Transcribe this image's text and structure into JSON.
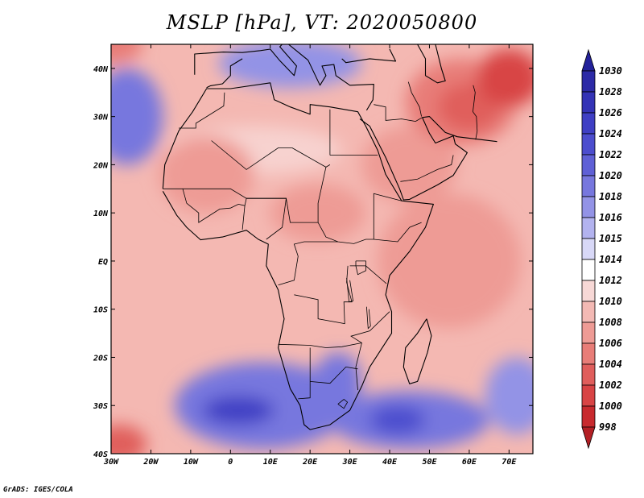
{
  "title": "MSLP [hPa], VT: 2020050800",
  "credit": "GrADS: IGES/COLA",
  "map": {
    "lon_range": [
      -30,
      76
    ],
    "lat_range": [
      -40,
      45
    ],
    "x_ticks": [
      {
        "lon": -30,
        "label": "30W"
      },
      {
        "lon": -20,
        "label": "20W"
      },
      {
        "lon": -10,
        "label": "10W"
      },
      {
        "lon": 0,
        "label": "0"
      },
      {
        "lon": 10,
        "label": "10E"
      },
      {
        "lon": 20,
        "label": "20E"
      },
      {
        "lon": 30,
        "label": "30E"
      },
      {
        "lon": 40,
        "label": "40E"
      },
      {
        "lon": 50,
        "label": "50E"
      },
      {
        "lon": 60,
        "label": "60E"
      },
      {
        "lon": 70,
        "label": "70E"
      }
    ],
    "y_ticks": [
      {
        "lat": 40,
        "label": "40N"
      },
      {
        "lat": 30,
        "label": "30N"
      },
      {
        "lat": 20,
        "label": "20N"
      },
      {
        "lat": 10,
        "label": "10N"
      },
      {
        "lat": 0,
        "label": "EQ"
      },
      {
        "lat": -10,
        "label": "10S"
      },
      {
        "lat": -20,
        "label": "20S"
      },
      {
        "lat": -30,
        "label": "30S"
      },
      {
        "lat": -40,
        "label": "40S"
      }
    ],
    "background_color": "#f4b8b2"
  },
  "colorbar": {
    "labels": [
      "1030",
      "1028",
      "1026",
      "1024",
      "1022",
      "1020",
      "1018",
      "1016",
      "1015",
      "1014",
      "1012",
      "1010",
      "1008",
      "1006",
      "1004",
      "1002",
      "1000",
      "998"
    ],
    "colors": [
      "#2c2aa6",
      "#3433b6",
      "#3f3fc4",
      "#4c4dce",
      "#5f60d6",
      "#7777de",
      "#9393e6",
      "#b3b3ef",
      "#d8d8f7",
      "#ffffff",
      "#f7d8d6",
      "#f3b9b4",
      "#ee9b95",
      "#e87d78",
      "#e05e5c",
      "#d84445",
      "#c82a2e"
    ],
    "top_arrow_color": "#23219a",
    "bottom_arrow_color": "#b31f24"
  },
  "features": [
    {
      "name": "sahara-ridge",
      "lon": 6,
      "lat": 23,
      "rx": 22,
      "ry": 5,
      "color": "#f7d2cf"
    },
    {
      "name": "west-sahara-low",
      "lon": -6,
      "lat": 18,
      "rx": 12,
      "ry": 8,
      "color": "#ee9b95"
    },
    {
      "name": "sudan-low",
      "lon": 22,
      "lat": 10,
      "rx": 12,
      "ry": 6,
      "color": "#ee9b95"
    },
    {
      "name": "arabia-low",
      "lon": 45,
      "lat": 20,
      "rx": 12,
      "ry": 8,
      "color": "#ee9b95"
    },
    {
      "name": "persia-low",
      "lon": 58,
      "lat": 33,
      "rx": 14,
      "ry": 9,
      "color": "#e87d78"
    },
    {
      "name": "persia-core",
      "lon": 60,
      "lat": 32,
      "rx": 8,
      "ry": 5,
      "color": "#e05e5c"
    },
    {
      "name": "asia-low",
      "lon": 70,
      "lat": 38,
      "rx": 8,
      "ry": 6,
      "color": "#d84445"
    },
    {
      "name": "med-ridge",
      "lon": 15,
      "lat": 41,
      "rx": 18,
      "ry": 5,
      "color": "#9393e6"
    },
    {
      "name": "azores-ridge",
      "lon": -26,
      "lat": 30,
      "rx": 9,
      "ry": 10,
      "color": "#7777de"
    },
    {
      "name": "nw-low",
      "lon": -30,
      "lat": 45,
      "rx": 8,
      "ry": 4,
      "color": "#e87d78"
    },
    {
      "name": "indian-ocean-warm",
      "lon": 55,
      "lat": 0,
      "rx": 18,
      "ry": 14,
      "color": "#ee9b95"
    },
    {
      "name": "south-atlantic-high",
      "lon": 8,
      "lat": -30,
      "rx": 22,
      "ry": 9,
      "color": "#7777de"
    },
    {
      "name": "south-atlantic-core",
      "lon": 2,
      "lat": -31,
      "rx": 9,
      "ry": 3,
      "color": "#3f3fc4"
    },
    {
      "name": "southern-africa-high",
      "lon": 27,
      "lat": -25,
      "rx": 6,
      "ry": 6,
      "color": "#7777de"
    },
    {
      "name": "mascarene-high",
      "lon": 45,
      "lat": -33,
      "rx": 20,
      "ry": 6,
      "color": "#7777de"
    },
    {
      "name": "mascarene-core",
      "lon": 42,
      "lat": -33,
      "rx": 7,
      "ry": 3,
      "color": "#4c4dce"
    },
    {
      "name": "east-high",
      "lon": 72,
      "lat": -28,
      "rx": 8,
      "ry": 8,
      "color": "#9393e6"
    },
    {
      "name": "sw-low",
      "lon": -28,
      "lat": -38,
      "rx": 7,
      "ry": 4,
      "color": "#e05e5c"
    }
  ],
  "coastlines": [
    {
      "name": "africa-coastline",
      "points": [
        [
          -17,
          15
        ],
        [
          -16.5,
          20
        ],
        [
          -13,
          27
        ],
        [
          -9.5,
          31
        ],
        [
          -6,
          35.8
        ],
        [
          0,
          35.8
        ],
        [
          10,
          37
        ],
        [
          11,
          33.5
        ],
        [
          15,
          32
        ],
        [
          20,
          30.5
        ],
        [
          20,
          32.5
        ],
        [
          25,
          32
        ],
        [
          32,
          31
        ],
        [
          34,
          28
        ],
        [
          37,
          23
        ],
        [
          39,
          18
        ],
        [
          43,
          12.5
        ],
        [
          51,
          11.8
        ],
        [
          49,
          7
        ],
        [
          45,
          2
        ],
        [
          40,
          -3
        ],
        [
          39,
          -7
        ],
        [
          40.5,
          -10.5
        ],
        [
          40.5,
          -15
        ],
        [
          35,
          -22
        ],
        [
          33,
          -26
        ],
        [
          30,
          -31
        ],
        [
          25,
          -34
        ],
        [
          20,
          -35
        ],
        [
          18.5,
          -34
        ],
        [
          17.5,
          -30
        ],
        [
          15,
          -26.5
        ],
        [
          12,
          -18
        ],
        [
          13.5,
          -12
        ],
        [
          12,
          -6
        ],
        [
          9,
          -1
        ],
        [
          9.5,
          3.5
        ],
        [
          7,
          4.5
        ],
        [
          4,
          6.4
        ],
        [
          -2,
          5
        ],
        [
          -7.5,
          4.4
        ],
        [
          -11,
          7
        ],
        [
          -13.5,
          9.5
        ],
        [
          -17,
          14.5
        ]
      ]
    },
    {
      "name": "madagascar-coastline",
      "points": [
        [
          49.3,
          -12
        ],
        [
          50.5,
          -15.5
        ],
        [
          49.5,
          -19
        ],
        [
          47,
          -25
        ],
        [
          45,
          -25.5
        ],
        [
          43.5,
          -22
        ],
        [
          44,
          -18
        ],
        [
          47,
          -15
        ],
        [
          49.3,
          -12
        ]
      ]
    },
    {
      "name": "arabia-coastline",
      "points": [
        [
          32.5,
          29.5
        ],
        [
          35,
          28
        ],
        [
          39,
          21.5
        ],
        [
          42.5,
          15
        ],
        [
          43.5,
          12.7
        ],
        [
          45,
          12.8
        ],
        [
          52,
          15.8
        ],
        [
          56,
          17.8
        ],
        [
          59.5,
          22.5
        ],
        [
          56.5,
          24.3
        ],
        [
          56,
          26
        ],
        [
          51.5,
          24.5
        ],
        [
          50,
          26.5
        ],
        [
          48.2,
          29.8
        ],
        [
          50,
          30
        ],
        [
          54,
          26.7
        ],
        [
          57,
          25.8
        ],
        [
          62,
          25.3
        ],
        [
          67,
          24.8
        ]
      ]
    },
    {
      "name": "europe-coastline",
      "points": [
        [
          -9,
          38.7
        ],
        [
          -9,
          43
        ],
        [
          -1.8,
          43.4
        ],
        [
          3,
          43.3
        ],
        [
          7.5,
          43.7
        ],
        [
          10,
          44
        ],
        [
          12.3,
          41.7
        ],
        [
          16,
          38.5
        ],
        [
          16.6,
          40.5
        ],
        [
          12.4,
          44.5
        ],
        [
          13.7,
          45.6
        ],
        [
          19.5,
          41.7
        ],
        [
          22.5,
          36.5
        ],
        [
          24,
          38.5
        ],
        [
          23,
          40.5
        ],
        [
          26,
          40.8
        ],
        [
          26.5,
          38.5
        ],
        [
          30,
          36.5
        ],
        [
          36,
          36.7
        ],
        [
          35.8,
          33.5
        ],
        [
          34.2,
          31.3
        ]
      ]
    },
    {
      "name": "caspian-coastline",
      "points": [
        [
          47,
          45
        ],
        [
          49,
          42
        ],
        [
          49,
          38.5
        ],
        [
          52,
          37
        ],
        [
          54,
          37.4
        ],
        [
          53,
          40
        ],
        [
          51.5,
          45
        ]
      ]
    },
    {
      "name": "black-sea-coastline",
      "points": [
        [
          28,
          42
        ],
        [
          29,
          41.2
        ],
        [
          35,
          42
        ],
        [
          41.5,
          41.5
        ],
        [
          40,
          44
        ]
      ]
    },
    {
      "name": "iberia-med-coastline",
      "points": [
        [
          -6,
          36
        ],
        [
          -5,
          36.4
        ],
        [
          -2,
          36.8
        ],
        [
          0,
          38.5
        ],
        [
          0,
          40.5
        ],
        [
          3,
          42
        ]
      ]
    }
  ],
  "borders": [
    {
      "name": "egypt-libya",
      "points": [
        [
          25,
          31.5
        ],
        [
          25,
          22
        ]
      ]
    },
    {
      "name": "egypt-sudan",
      "points": [
        [
          25,
          22
        ],
        [
          37,
          22
        ]
      ]
    },
    {
      "name": "libya-chad",
      "points": [
        [
          25,
          20
        ],
        [
          24,
          19.5
        ],
        [
          15.5,
          23.5
        ]
      ]
    },
    {
      "name": "algeria-niger-mali",
      "points": [
        [
          -4.8,
          25
        ],
        [
          4,
          19
        ],
        [
          12,
          23.5
        ],
        [
          15.5,
          23.5
        ]
      ]
    },
    {
      "name": "sahel",
      "points": [
        [
          -17,
          15
        ],
        [
          -12,
          15
        ],
        [
          -5,
          15
        ],
        [
          0,
          15
        ],
        [
          4,
          13
        ],
        [
          14,
          13
        ],
        [
          15,
          8
        ],
        [
          22,
          8
        ],
        [
          24,
          5
        ],
        [
          27,
          4
        ],
        [
          31,
          3.6
        ],
        [
          34,
          4.5
        ],
        [
          36,
          4.5
        ],
        [
          42,
          4
        ],
        [
          45,
          7
        ],
        [
          48,
          8
        ]
      ]
    },
    {
      "name": "chad-sudan",
      "points": [
        [
          24,
          19.5
        ],
        [
          22,
          12
        ],
        [
          22,
          8
        ]
      ]
    },
    {
      "name": "nigeria",
      "points": [
        [
          3,
          6.5
        ],
        [
          3.6,
          11.5
        ],
        [
          4,
          13
        ],
        [
          14,
          13
        ],
        [
          13,
          7
        ],
        [
          9,
          4.5
        ]
      ]
    },
    {
      "name": "drc-west",
      "points": [
        [
          12,
          -5
        ],
        [
          16,
          -4
        ],
        [
          17,
          1
        ],
        [
          16,
          3.5
        ],
        [
          18.5,
          4
        ],
        [
          27,
          4
        ]
      ]
    },
    {
      "name": "drc-east",
      "points": [
        [
          29.5,
          -1
        ],
        [
          29.2,
          -4.4
        ],
        [
          30.5,
          -8.5
        ],
        [
          28.5,
          -8.5
        ],
        [
          28.7,
          -13
        ],
        [
          22,
          -12
        ],
        [
          22,
          -8
        ],
        [
          16,
          -7
        ]
      ]
    },
    {
      "name": "angola-namibia",
      "points": [
        [
          12,
          -17.3
        ],
        [
          20,
          -17.5
        ],
        [
          24,
          -18
        ],
        [
          28,
          -17.8
        ],
        [
          33,
          -17
        ]
      ]
    },
    {
      "name": "namibia-botswana",
      "points": [
        [
          20,
          -18
        ],
        [
          20,
          -22
        ],
        [
          20,
          -28.4
        ],
        [
          17,
          -28.6
        ]
      ]
    },
    {
      "name": "botswana-sa",
      "points": [
        [
          20,
          -25
        ],
        [
          25,
          -25.4
        ],
        [
          29,
          -22
        ],
        [
          32,
          -22.4
        ]
      ]
    },
    {
      "name": "mozambique",
      "points": [
        [
          32,
          -26.8
        ],
        [
          31.5,
          -22
        ],
        [
          33,
          -17
        ],
        [
          30.3,
          -15.6
        ],
        [
          35,
          -14.5
        ],
        [
          40,
          -10.5
        ]
      ]
    },
    {
      "name": "tanzania",
      "points": [
        [
          30,
          -1
        ],
        [
          34,
          -1
        ],
        [
          39.2,
          -4.7
        ]
      ]
    },
    {
      "name": "ethiopia-somalia",
      "points": [
        [
          36,
          4.5
        ],
        [
          36,
          14
        ],
        [
          43,
          12.5
        ]
      ]
    },
    {
      "name": "west-africa",
      "points": [
        [
          -12,
          15
        ],
        [
          -11,
          12
        ],
        [
          -8,
          10
        ],
        [
          -8,
          8
        ],
        [
          -2.7,
          10.8
        ],
        [
          0,
          11
        ],
        [
          2,
          11.8
        ],
        [
          3.6,
          11.5
        ]
      ]
    },
    {
      "name": "morocco-algeria",
      "points": [
        [
          -1.5,
          35
        ],
        [
          -1.7,
          32.2
        ],
        [
          -8.7,
          28.6
        ],
        [
          -8.7,
          27.6
        ],
        [
          -13,
          27.6
        ]
      ]
    },
    {
      "name": "lake-victoria",
      "points": [
        [
          31.5,
          0
        ],
        [
          34,
          0
        ],
        [
          34,
          -2
        ],
        [
          32,
          -2.8
        ],
        [
          31.5,
          -1
        ],
        [
          31.5,
          0
        ]
      ]
    },
    {
      "name": "lake-tanganyika",
      "points": [
        [
          29.2,
          -3.5
        ],
        [
          29.8,
          -8.5
        ],
        [
          30.8,
          -8.3
        ],
        [
          30,
          -4
        ]
      ]
    },
    {
      "name": "lake-malawi",
      "points": [
        [
          34.2,
          -9.5
        ],
        [
          34.6,
          -14
        ],
        [
          35.2,
          -13.5
        ],
        [
          34.8,
          -10
        ]
      ]
    },
    {
      "name": "lesotho",
      "points": [
        [
          27,
          -29.7
        ],
        [
          28.5,
          -28.7
        ],
        [
          29.4,
          -29.3
        ],
        [
          28.5,
          -30.6
        ],
        [
          27,
          -29.7
        ]
      ]
    },
    {
      "name": "middle-east",
      "points": [
        [
          36,
          32.5
        ],
        [
          39,
          32
        ],
        [
          39,
          29.2
        ],
        [
          43,
          29.5
        ],
        [
          46.5,
          29
        ],
        [
          48.2,
          29.8
        ]
      ]
    },
    {
      "name": "iraq-iran",
      "points": [
        [
          44.7,
          37.2
        ],
        [
          45.5,
          35
        ],
        [
          47.5,
          32
        ],
        [
          48,
          30
        ]
      ]
    },
    {
      "name": "iran-afghan",
      "points": [
        [
          61,
          36.5
        ],
        [
          61.5,
          35
        ],
        [
          60.9,
          31
        ],
        [
          61.8,
          30
        ],
        [
          62,
          27
        ],
        [
          61.6,
          25.2
        ]
      ]
    },
    {
      "name": "saudi-yemen",
      "points": [
        [
          42.7,
          16.5
        ],
        [
          47,
          17
        ],
        [
          52,
          19
        ],
        [
          55.5,
          20
        ],
        [
          56,
          22
        ]
      ]
    }
  ]
}
